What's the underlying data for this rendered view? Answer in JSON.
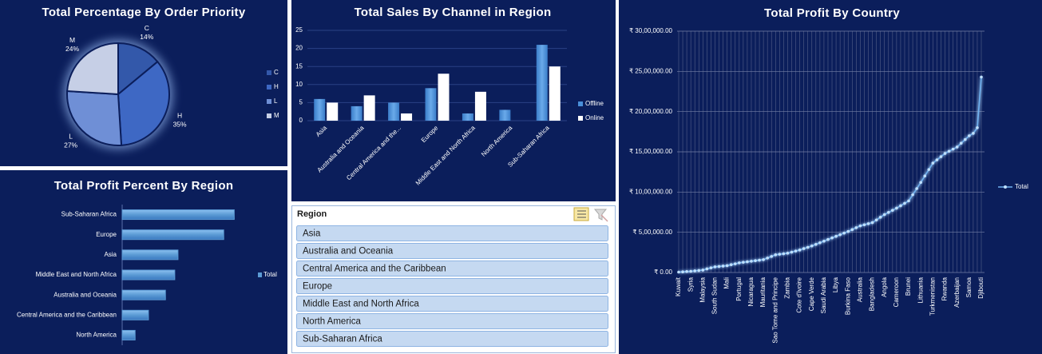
{
  "chart_data": [
    {
      "type": "pie",
      "title": "Total Percentage By Order Priority",
      "categories": [
        "C",
        "H",
        "L",
        "M"
      ],
      "values": [
        14,
        35,
        27,
        24
      ],
      "value_labels": [
        "14%",
        "35%",
        "27%",
        "24%"
      ],
      "colors": [
        "#3358aa",
        "#3e68c4",
        "#6f8fd6",
        "#c6cfe6"
      ],
      "legend": "right"
    },
    {
      "type": "bar",
      "orientation": "horizontal",
      "title": "Total Profit Percent By Region",
      "categories": [
        "Sub-Saharan Africa",
        "Europe",
        "Asia",
        "Middle East and North Africa",
        "Australia and Oceania",
        "Central America and the Caribbean",
        "North America"
      ],
      "series": [
        {
          "name": "Total",
          "color": "#5b9bd5",
          "values": [
            27.7,
            25.1,
            13.8,
            13.0,
            10.7,
            6.5,
            3.2
          ]
        }
      ],
      "xlim": [
        0,
        30
      ],
      "legend": "right"
    },
    {
      "type": "bar",
      "orientation": "vertical",
      "title": "Total Sales By Channel in Region",
      "categories": [
        "Asia",
        "Australia and Oceania",
        "Central America and the...",
        "Europe",
        "Middle East and North Africa",
        "North America",
        "Sub-Saharan Africa"
      ],
      "series": [
        {
          "name": "Offline",
          "color": "#4a90d9",
          "values": [
            6,
            4,
            5,
            9,
            2,
            3,
            21
          ]
        },
        {
          "name": "Online",
          "color": "#ffffff",
          "values": [
            5,
            7,
            2,
            13,
            8,
            null,
            15
          ]
        }
      ],
      "ylim": [
        0,
        25
      ],
      "yticks": [
        0,
        5,
        10,
        15,
        20,
        25
      ],
      "grid": true,
      "legend": "right"
    },
    {
      "type": "line",
      "title": "Total Profit By Country",
      "categories": [
        "Kuwait",
        null,
        null,
        "Syria",
        null,
        null,
        "Malaysia",
        null,
        null,
        "South Sudan",
        null,
        null,
        "Mali",
        null,
        null,
        "Portugal",
        null,
        null,
        "Nicaragua",
        null,
        null,
        "Mauritania",
        null,
        null,
        "Sao Tome and Principe",
        null,
        null,
        "Zambia",
        null,
        null,
        "Cote d'Ivoire",
        null,
        null,
        "Cape Verde",
        null,
        null,
        "Saudi Arabia",
        null,
        null,
        "Libya",
        null,
        null,
        "Burkina Faso",
        null,
        null,
        "Australia",
        null,
        null,
        "Bangladesh",
        null,
        null,
        "Angola",
        null,
        null,
        "Cameroon",
        null,
        null,
        "Brunei",
        null,
        null,
        "Lithuania",
        null,
        null,
        "Turkmenistan",
        null,
        null,
        "Rwanda",
        null,
        null,
        "Azerbaijan",
        null,
        null,
        "Samoa",
        null,
        null,
        "Djibouti"
      ],
      "series": [
        {
          "name": "Total",
          "color": "#6fb1f0",
          "values": [
            5000,
            8000,
            12000,
            15000,
            20000,
            25000,
            30000,
            45000,
            58000,
            70000,
            75000,
            80000,
            85000,
            97000,
            108000,
            120000,
            127000,
            133000,
            140000,
            147000,
            153000,
            160000,
            180000,
            200000,
            220000,
            227000,
            233000,
            240000,
            253000,
            267000,
            280000,
            297000,
            313000,
            330000,
            350000,
            370000,
            390000,
            410000,
            430000,
            450000,
            470000,
            490000,
            510000,
            533000,
            557000,
            580000,
            593000,
            607000,
            620000,
            653000,
            687000,
            720000,
            747000,
            773000,
            800000,
            830000,
            860000,
            890000,
            967000,
            1043000,
            1120000,
            1200000,
            1280000,
            1360000,
            1400000,
            1440000,
            1480000,
            1507000,
            1533000,
            1560000,
            1607000,
            1653000,
            1700000,
            1730000,
            1800000,
            2430000
          ]
        }
      ],
      "ylim": [
        0,
        3000000
      ],
      "yticks": [
        {
          "value": 0,
          "label": "₹ 0.00"
        },
        {
          "value": 500000,
          "label": "₹ 5,00,000.00"
        },
        {
          "value": 1000000,
          "label": "₹ 10,00,000.00"
        },
        {
          "value": 1500000,
          "label": "₹ 15,00,000.00"
        },
        {
          "value": 2000000,
          "label": "₹ 20,00,000.00"
        },
        {
          "value": 2500000,
          "label": "₹ 25,00,000.00"
        },
        {
          "value": 3000000,
          "label": "₹ 30,00,000.00"
        }
      ],
      "grid": true,
      "legend": "right"
    }
  ],
  "slicer": {
    "title": "Region",
    "items": [
      "Asia",
      "Australia and Oceania",
      "Central America and the Caribbean",
      "Europe",
      "Middle East and North Africa",
      "North America",
      "Sub-Saharan Africa"
    ]
  }
}
